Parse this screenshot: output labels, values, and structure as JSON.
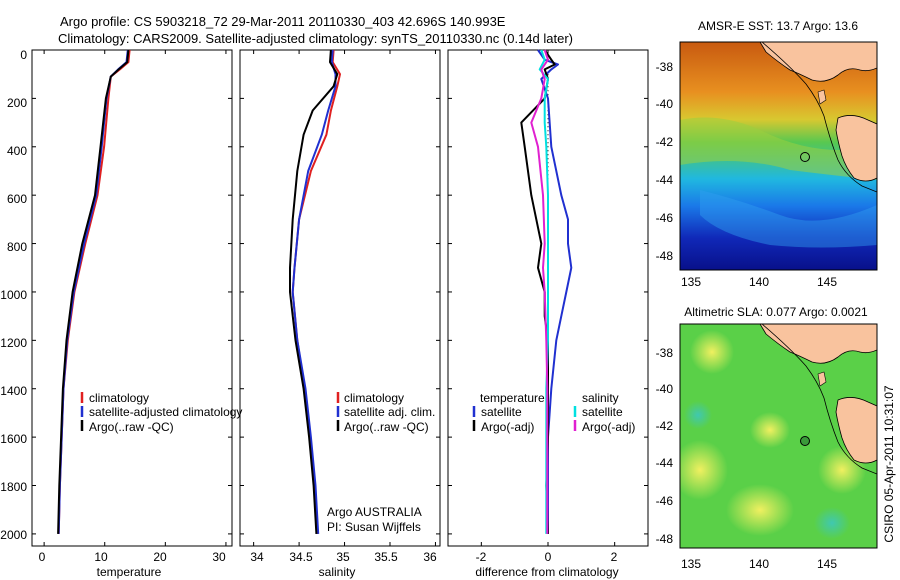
{
  "header": {
    "title_line1": "Argo profile: CS 5903218_72 29-Mar-2011 20110330_403 42.696S 140.993E",
    "title_line2": "Climatology: CARS2009. Satellite-adjusted climatology: synTS_20110330.nc (0.14d later)"
  },
  "side_label": "CSIRO 05-Apr-2011 10:31:07",
  "colors": {
    "climatology": "#e02020",
    "satellite": "#2030d0",
    "argo": "#000000",
    "sat_salinity": "#00e0e0",
    "argo_adj": "#e020d0"
  },
  "depth_ticks": [
    "0",
    "200",
    "400",
    "600",
    "800",
    "1000",
    "1200",
    "1400",
    "1600",
    "1800",
    "2000"
  ],
  "chart_data": [
    {
      "type": "line",
      "xlabel": "temperature",
      "xlim": [
        -2,
        31
      ],
      "ylim": [
        2050,
        0
      ],
      "xticks": [
        "0",
        "10",
        "20",
        "30"
      ],
      "legend": [
        "climatology",
        "satellite-adjusted climatology",
        "Argo(..raw -QC)"
      ],
      "series": [
        {
          "name": "climatology",
          "depth": [
            0,
            50,
            80,
            110,
            200,
            400,
            600,
            800,
            1000,
            1200,
            1400,
            1600,
            1800,
            2000
          ],
          "values": [
            14.1,
            13.9,
            12.5,
            11.0,
            10.6,
            9.9,
            8.8,
            6.8,
            5.0,
            3.9,
            3.2,
            2.9,
            2.6,
            2.4
          ]
        },
        {
          "name": "satellite-adjusted climatology",
          "depth": [
            0,
            50,
            80,
            110,
            200,
            400,
            600,
            800,
            1000,
            1200,
            1400,
            1600,
            1800,
            2000
          ],
          "values": [
            13.8,
            13.6,
            12.2,
            11.0,
            10.3,
            9.5,
            8.6,
            6.6,
            4.9,
            3.8,
            3.2,
            2.9,
            2.6,
            2.4
          ]
        },
        {
          "name": "Argo(..raw -QC)",
          "depth": [
            0,
            50,
            80,
            110,
            200,
            400,
            600,
            800,
            1000,
            1200,
            1400,
            1600,
            1800,
            2000
          ],
          "values": [
            13.9,
            13.7,
            12.3,
            11.0,
            10.2,
            9.3,
            8.4,
            6.3,
            4.7,
            3.7,
            3.1,
            2.8,
            2.5,
            2.3
          ]
        }
      ]
    },
    {
      "type": "line",
      "xlabel": "salinity",
      "xlim": [
        33.85,
        36.05
      ],
      "ylim": [
        2050,
        0
      ],
      "xticks": [
        "34",
        "34.5",
        "35",
        "35.5",
        "36"
      ],
      "legend": [
        "climatology",
        "satellite adj. clim.",
        "Argo(..raw -QC)"
      ],
      "annotations": [
        "Argo AUSTRALIA",
        "PI: Susan Wijffels"
      ],
      "series": [
        {
          "name": "climatology",
          "depth": [
            0,
            50,
            100,
            150,
            250,
            350,
            500,
            700,
            900,
            1000,
            1200,
            1400,
            1600,
            1800,
            2000
          ],
          "values": [
            34.88,
            34.87,
            34.95,
            34.92,
            34.85,
            34.8,
            34.63,
            34.5,
            34.45,
            34.43,
            34.48,
            34.56,
            34.62,
            34.67,
            34.7
          ]
        },
        {
          "name": "satellite adj. clim.",
          "depth": [
            0,
            50,
            100,
            150,
            250,
            350,
            500,
            700,
            900,
            1000,
            1200,
            1400,
            1600,
            1800,
            2000
          ],
          "values": [
            34.87,
            34.86,
            34.9,
            34.9,
            34.82,
            34.75,
            34.6,
            34.5,
            34.45,
            34.43,
            34.48,
            34.57,
            34.63,
            34.68,
            34.71
          ]
        },
        {
          "name": "Argo(..raw -QC)",
          "depth": [
            0,
            50,
            100,
            150,
            250,
            350,
            500,
            700,
            900,
            1000,
            1200,
            1400,
            1600,
            1800,
            2000
          ],
          "values": [
            34.85,
            34.84,
            34.92,
            34.88,
            34.65,
            34.55,
            34.48,
            34.43,
            34.4,
            34.4,
            34.46,
            34.55,
            34.61,
            34.66,
            34.69
          ]
        }
      ]
    },
    {
      "type": "line",
      "xlabel": "difference from climatology",
      "xlim": [
        -3,
        3
      ],
      "ylim": [
        2050,
        0
      ],
      "xticks": [
        "-2",
        "0",
        "2"
      ],
      "legend_temperature": {
        "heading": "temperature",
        "items": [
          "satellite",
          "Argo(-adj)"
        ]
      },
      "legend_salinity": {
        "heading": "salinity",
        "items": [
          "satellite",
          "Argo(-adj)"
        ]
      },
      "series": [
        {
          "name": "temperature satellite",
          "depth": [
            0,
            40,
            60,
            80,
            120,
            200,
            400,
            600,
            700,
            800,
            900,
            1000,
            1100,
            1200,
            1400,
            1600,
            1800,
            2000
          ],
          "values": [
            -0.3,
            -0.1,
            0.3,
            0.1,
            -0.2,
            0.0,
            0.1,
            0.4,
            0.6,
            0.6,
            0.7,
            0.55,
            0.4,
            0.25,
            0.1,
            0.0,
            0.0,
            0.0
          ]
        },
        {
          "name": "temperature Argo(-adj)",
          "depth": [
            0,
            40,
            60,
            80,
            120,
            200,
            300,
            400,
            600,
            800,
            900,
            1000,
            1100,
            1200,
            1400,
            1600,
            1800,
            2000
          ],
          "values": [
            -0.1,
            0.1,
            0.2,
            -0.1,
            0.0,
            -0.1,
            -0.8,
            -0.7,
            -0.5,
            -0.2,
            -0.3,
            -0.1,
            -0.1,
            0.0,
            0.0,
            0.0,
            -0.05,
            0.0
          ]
        },
        {
          "name": "salinity satellite",
          "depth": [
            0,
            40,
            80,
            120,
            200,
            300,
            400,
            600,
            800,
            1000,
            1200,
            1400,
            1600,
            1800,
            2000
          ],
          "values": [
            -0.2,
            -0.1,
            -0.25,
            0.0,
            -0.1,
            -0.1,
            -0.05,
            0.0,
            0.0,
            0.0,
            0.0,
            -0.05,
            -0.05,
            -0.05,
            -0.05
          ]
        },
        {
          "name": "salinity Argo(-adj)",
          "depth": [
            0,
            40,
            80,
            120,
            200,
            300,
            400,
            600,
            800,
            900,
            1000,
            1200,
            1400,
            1600,
            1800,
            2000
          ],
          "values": [
            -0.1,
            0.0,
            -0.2,
            -0.1,
            -0.2,
            -0.5,
            -0.3,
            -0.15,
            -0.1,
            -0.15,
            -0.1,
            -0.05,
            -0.02,
            -0.02,
            -0.02,
            -0.02
          ]
        }
      ]
    },
    {
      "type": "heatmap",
      "title": "AMSR-E SST: 13.7 Argo: 13.6",
      "xticks": [
        "135",
        "140",
        "145"
      ],
      "yticks": [
        "-38",
        "-40",
        "-42",
        "-44",
        "-46",
        "-48"
      ],
      "xlim": [
        133.5,
        148
      ],
      "ylim": [
        -48.7,
        -36.7
      ]
    },
    {
      "type": "heatmap",
      "title": "Altimetric SLA: 0.077 Argo: 0.0021",
      "xticks": [
        "135",
        "140",
        "145"
      ],
      "yticks": [
        "-38",
        "-40",
        "-42",
        "-44",
        "-46",
        "-48"
      ],
      "xlim": [
        133.5,
        148
      ],
      "ylim": [
        -48.7,
        -36.7
      ]
    }
  ]
}
